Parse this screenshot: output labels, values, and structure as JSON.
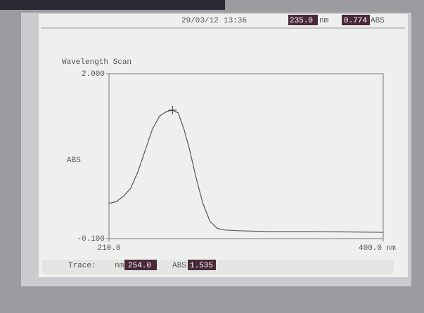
{
  "header": {
    "date": "29/03/12",
    "time": "13:36",
    "wavelength": "235.0",
    "wavelength_unit": "nm",
    "absorbance": "0.774",
    "absorbance_unit": "ABS"
  },
  "chart_data": {
    "type": "line",
    "title": "Wavelength Scan",
    "y_label": "ABS",
    "xlim": [
      210,
      400
    ],
    "ylim": [
      -0.1,
      2.0
    ],
    "xticks": [
      {
        "value": 210,
        "label": "210.0"
      },
      {
        "value": 400,
        "label": "400.0 nm"
      }
    ],
    "yticks": [
      {
        "value": 2.0,
        "label": "2.000"
      },
      {
        "value": -0.1,
        "label": "-0.100"
      }
    ],
    "x": [
      210,
      215,
      220,
      225,
      230,
      235,
      240,
      245,
      250,
      254,
      258,
      262,
      266,
      270,
      275,
      280,
      285,
      290,
      300,
      320,
      350,
      400
    ],
    "series": [
      {
        "color": "#555555",
        "values": [
          0.35,
          0.37,
          0.44,
          0.54,
          0.75,
          1.02,
          1.29,
          1.46,
          1.52,
          1.535,
          1.5,
          1.29,
          1.02,
          0.7,
          0.35,
          0.12,
          0.03,
          0.01,
          0.0,
          -0.01,
          -0.01,
          -0.02
        ]
      }
    ],
    "cursor": {
      "x": {
        "value": 254,
        "label": "254.0"
      },
      "y": {
        "value": 1.535,
        "label": "1.535"
      }
    }
  },
  "footer": {
    "trace_label": "Trace:",
    "nm_label": "nm",
    "abs_label": "ABS"
  }
}
